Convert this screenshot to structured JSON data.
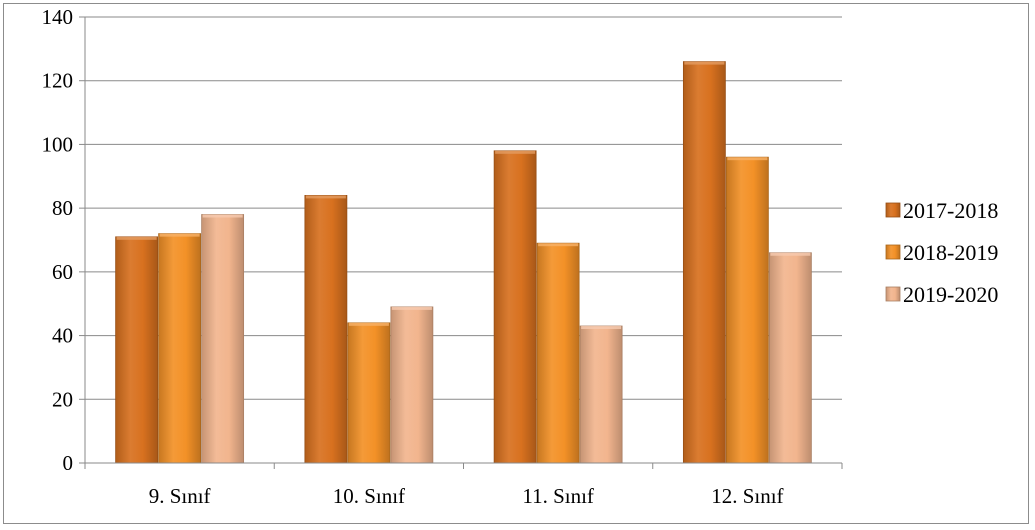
{
  "chart_data": {
    "type": "bar",
    "title": "",
    "xlabel": "",
    "ylabel": "",
    "categories": [
      "9. Sınıf",
      "10. Sınıf",
      "11. Sınıf",
      "12. Sınıf"
    ],
    "series": [
      {
        "name": "2017-2018",
        "values": [
          71,
          84,
          98,
          126
        ],
        "color": "#d8711f"
      },
      {
        "name": "2018-2019",
        "values": [
          72,
          44,
          69,
          96
        ],
        "color": "#f39127"
      },
      {
        "name": "2019-2020",
        "values": [
          78,
          49,
          43,
          66
        ],
        "color": "#f2b58e"
      }
    ],
    "ylim": [
      0,
      140
    ],
    "yticks": [
      "0",
      "20",
      "40",
      "60",
      "80",
      "100",
      "120",
      "140"
    ],
    "grid": true,
    "legend": "right"
  }
}
